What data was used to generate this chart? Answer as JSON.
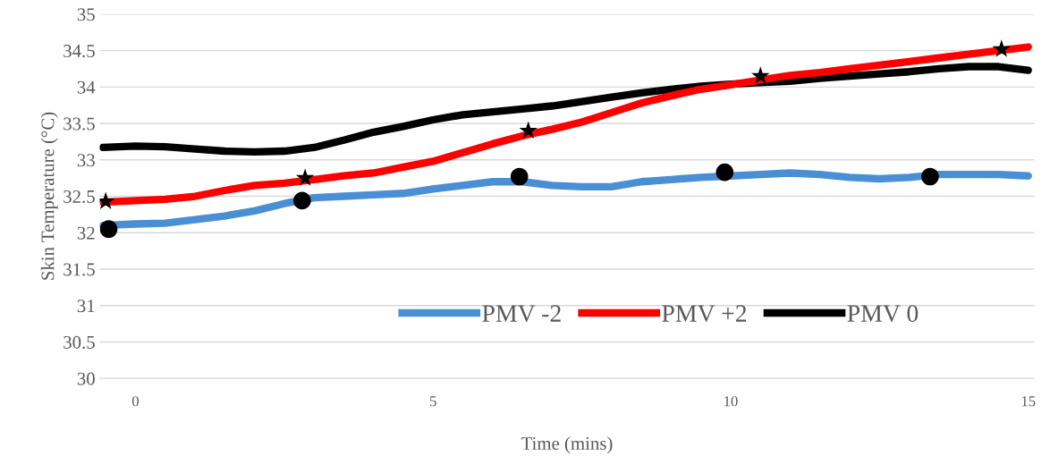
{
  "chart_data": {
    "type": "line",
    "xlabel": "Time (mins)",
    "ylabel": "Skin Temperature (°C)",
    "xlim": [
      -0.6,
      15.1
    ],
    "xticks": [
      0,
      5,
      10,
      15
    ],
    "ylim": [
      30,
      35
    ],
    "yticks": [
      30,
      30.5,
      31,
      31.5,
      32,
      32.5,
      33,
      33.5,
      34,
      34.5,
      35
    ],
    "grid": "y",
    "legend": "bottom",
    "line_style": "solid",
    "series": [
      {
        "name": "PMV -2",
        "color": "#4a8fd4",
        "x": [
          -0.55,
          0,
          0.5,
          1,
          1.5,
          2,
          2.5,
          3,
          3.5,
          4,
          4.5,
          5,
          5.5,
          6,
          6.5,
          7,
          7.5,
          8,
          8.5,
          9,
          9.5,
          10,
          10.5,
          11,
          11.5,
          12,
          12.5,
          13,
          13.5,
          14,
          14.5,
          15
        ],
        "values": [
          32.1,
          32.12,
          32.13,
          32.18,
          32.23,
          32.3,
          32.4,
          32.48,
          32.5,
          32.52,
          32.54,
          32.6,
          32.65,
          32.7,
          32.7,
          32.65,
          32.63,
          32.63,
          32.7,
          32.73,
          32.76,
          32.78,
          32.8,
          32.82,
          32.8,
          32.76,
          32.74,
          32.76,
          32.8,
          32.8,
          32.8,
          32.78
        ]
      },
      {
        "name": "PMV +2",
        "color": "#ff0000",
        "x": [
          -0.55,
          0,
          0.5,
          1,
          1.5,
          2,
          2.5,
          3,
          3.5,
          4,
          4.5,
          5,
          5.5,
          6,
          6.5,
          7,
          7.5,
          8,
          8.5,
          9,
          9.5,
          10,
          10.75,
          11,
          11.5,
          12,
          12.5,
          13,
          13.5,
          14,
          14.5,
          15
        ],
        "values": [
          32.42,
          32.44,
          32.46,
          32.5,
          32.58,
          32.65,
          32.68,
          32.73,
          32.78,
          32.82,
          32.9,
          32.98,
          33.1,
          33.22,
          33.33,
          33.42,
          33.52,
          33.65,
          33.78,
          33.88,
          33.97,
          34.03,
          34.13,
          34.16,
          34.2,
          34.25,
          34.3,
          34.35,
          34.4,
          34.45,
          34.5,
          34.55
        ]
      },
      {
        "name": "PMV 0",
        "color": "#000000",
        "x": [
          -0.55,
          0,
          0.5,
          1,
          1.5,
          2,
          2.5,
          3,
          3.5,
          4,
          4.5,
          5,
          5.5,
          6,
          6.5,
          7,
          7.5,
          8,
          8.5,
          9,
          9.5,
          10,
          10.5,
          11,
          11.5,
          12,
          12.5,
          13,
          13.5,
          14,
          14.5,
          15
        ],
        "values": [
          33.17,
          33.19,
          33.18,
          33.15,
          33.12,
          33.11,
          33.12,
          33.17,
          33.27,
          33.38,
          33.46,
          33.55,
          33.62,
          33.66,
          33.7,
          33.74,
          33.8,
          33.86,
          33.92,
          33.97,
          34.01,
          34.04,
          34.06,
          34.08,
          34.12,
          34.15,
          34.18,
          34.21,
          34.25,
          34.28,
          34.28,
          34.23
        ]
      },
      {
        "type": "scatter",
        "color": "#000000",
        "marker": "circle",
        "x": [
          -0.45,
          2.8,
          6.45,
          9.9,
          13.35
        ],
        "values": [
          32.05,
          32.44,
          32.77,
          32.83,
          32.77
        ]
      },
      {
        "type": "scatter",
        "color": "#000000",
        "marker": "star",
        "x": [
          -0.5,
          2.85,
          6.6,
          10.5,
          14.55
        ],
        "values": [
          32.43,
          32.75,
          33.4,
          34.15,
          34.52
        ]
      }
    ]
  }
}
